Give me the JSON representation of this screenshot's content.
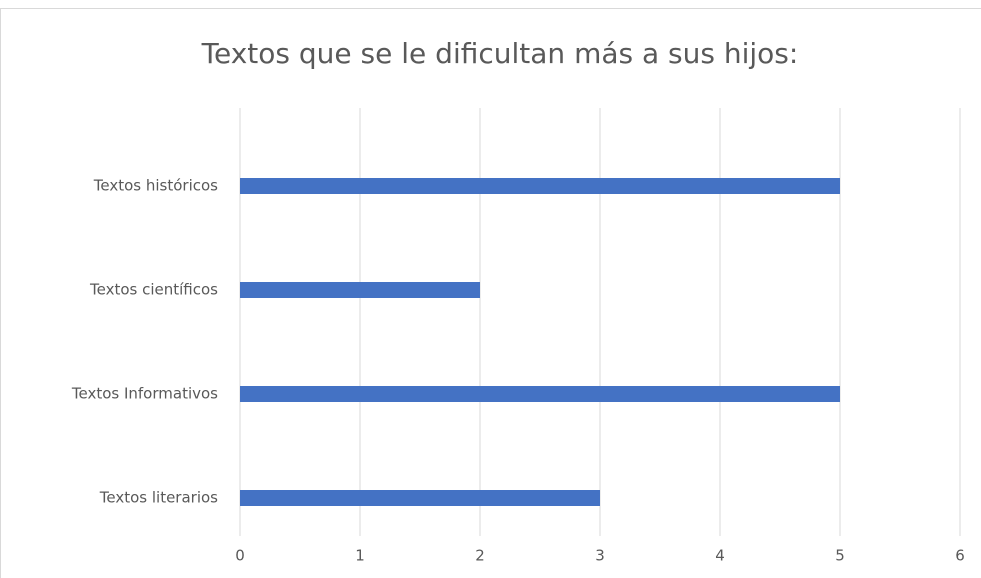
{
  "chart_data": {
    "type": "bar",
    "orientation": "horizontal",
    "title": "Textos que se le dificultan más a sus hijos:",
    "categories": [
      "Textos históricos",
      "Textos científicos",
      "Textos Informativos",
      "Textos literarios"
    ],
    "values": [
      5,
      2,
      5,
      3
    ],
    "color": "#4472c4",
    "xlim": [
      0,
      6
    ],
    "xticks": [
      0,
      1,
      2,
      3,
      4,
      5,
      6
    ],
    "grid": true
  }
}
